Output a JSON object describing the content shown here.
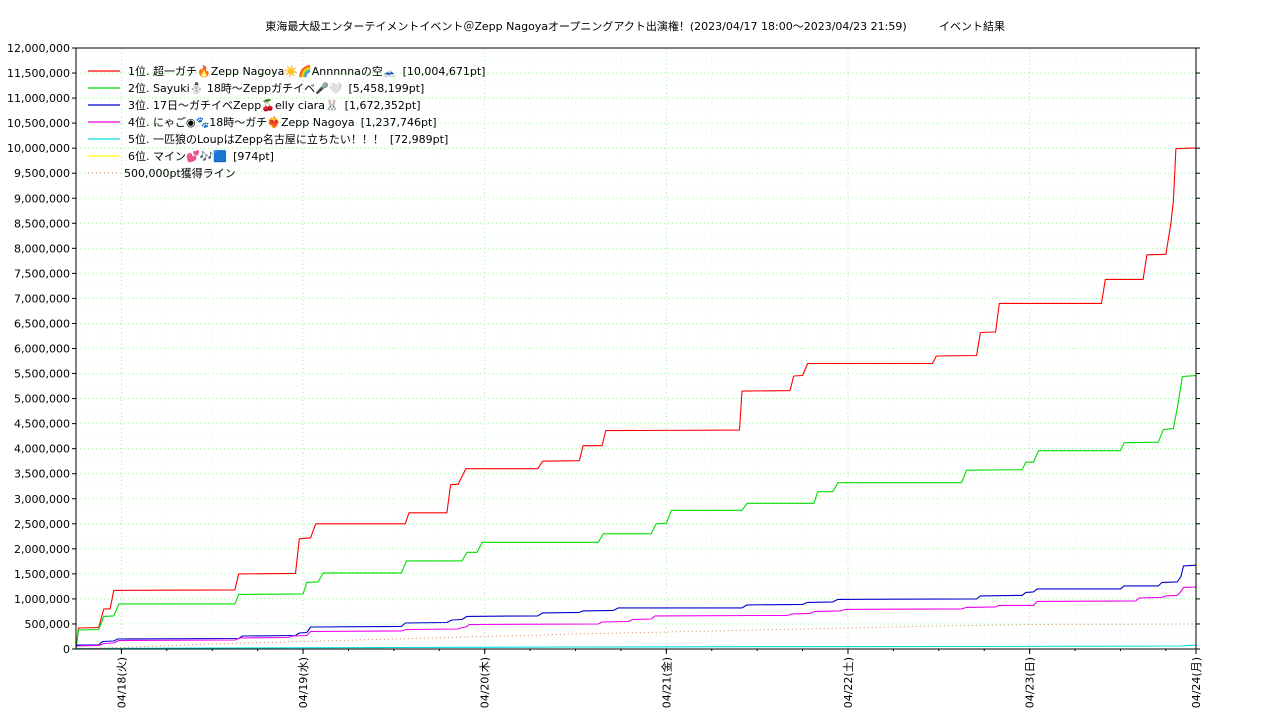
{
  "chart_data": {
    "type": "line",
    "title": "東海最大級エンターテイメントイベント＠Zepp Nagoyaオープニングアクト出演権！(2023/04/17 18:00～2023/04/23 21:59)",
    "title_suffix": "イベント結果",
    "xlabel": "",
    "ylabel": "",
    "xlim": [
      "2023-04-17 18:00",
      "2023-04-23 21:59"
    ],
    "ylim": [
      0,
      12000000
    ],
    "y_tick_step": 500000,
    "grid": true,
    "legend_position": "top-left",
    "x_ticks": [
      {
        "date": "2023-04-18 00:00",
        "label": "04/18(火)"
      },
      {
        "date": "2023-04-19 00:00",
        "label": "04/19(水)"
      },
      {
        "date": "2023-04-20 00:00",
        "label": "04/20(木)"
      },
      {
        "date": "2023-04-21 00:00",
        "label": "04/21(金)"
      },
      {
        "date": "2023-04-22 00:00",
        "label": "04/22(土)"
      },
      {
        "date": "2023-04-23 00:00",
        "label": "04/23(日)"
      },
      {
        "date": "2023-04-24 00:00",
        "label": "04/24(月)"
      }
    ],
    "series": [
      {
        "name": "1位. 超一ガチ🔥Zepp Nagoya☀️🌈Annnnnaの空🗻",
        "total": "[10,004,671pt]",
        "color": "#ff0000",
        "points": [
          [
            "2023-04-17 18:00",
            0
          ],
          [
            "2023-04-17 18:20",
            420000
          ],
          [
            "2023-04-17 21:00",
            430000
          ],
          [
            "2023-04-17 21:40",
            800000
          ],
          [
            "2023-04-17 22:30",
            800000
          ],
          [
            "2023-04-17 23:00",
            1170000
          ],
          [
            "2023-04-18 15:00",
            1180000
          ],
          [
            "2023-04-18 15:30",
            1500000
          ],
          [
            "2023-04-18 23:00",
            1510000
          ],
          [
            "2023-04-18 23:30",
            2200000
          ],
          [
            "2023-04-19 01:00",
            2220000
          ],
          [
            "2023-04-19 01:40",
            2500000
          ],
          [
            "2023-04-19 13:30",
            2500000
          ],
          [
            "2023-04-19 14:00",
            2720000
          ],
          [
            "2023-04-19 19:00",
            2720000
          ],
          [
            "2023-04-19 19:30",
            3280000
          ],
          [
            "2023-04-19 20:30",
            3290000
          ],
          [
            "2023-04-19 21:30",
            3600000
          ],
          [
            "2023-04-20 07:00",
            3600000
          ],
          [
            "2023-04-20 07:40",
            3750000
          ],
          [
            "2023-04-20 12:30",
            3760000
          ],
          [
            "2023-04-20 13:00",
            4060000
          ],
          [
            "2023-04-20 15:30",
            4060000
          ],
          [
            "2023-04-20 16:00",
            4360000
          ],
          [
            "2023-04-21 09:40",
            4370000
          ],
          [
            "2023-04-21 10:00",
            5150000
          ],
          [
            "2023-04-21 16:20",
            5160000
          ],
          [
            "2023-04-21 16:50",
            5450000
          ],
          [
            "2023-04-21 18:00",
            5460000
          ],
          [
            "2023-04-21 18:40",
            5700000
          ],
          [
            "2023-04-22 11:10",
            5700000
          ],
          [
            "2023-04-22 11:40",
            5850000
          ],
          [
            "2023-04-22 17:00",
            5860000
          ],
          [
            "2023-04-22 17:30",
            6320000
          ],
          [
            "2023-04-22 19:30",
            6330000
          ],
          [
            "2023-04-22 20:00",
            6900000
          ],
          [
            "2023-04-23 09:30",
            6900000
          ],
          [
            "2023-04-23 10:00",
            7380000
          ],
          [
            "2023-04-23 15:00",
            7380000
          ],
          [
            "2023-04-23 15:30",
            7870000
          ],
          [
            "2023-04-23 18:00",
            7880000
          ],
          [
            "2023-04-23 18:40",
            8500000
          ],
          [
            "2023-04-23 19:00",
            8950000
          ],
          [
            "2023-04-23 19:20",
            9990000
          ],
          [
            "2023-04-23 21:59",
            10004671
          ]
        ]
      },
      {
        "name": "2位. Sayuki⛄ 18時〜Zeppガチイベ🎤🤍",
        "total": "[5,458,199pt]",
        "color": "#00dd00",
        "points": [
          [
            "2023-04-17 18:00",
            0
          ],
          [
            "2023-04-17 18:20",
            380000
          ],
          [
            "2023-04-17 21:00",
            390000
          ],
          [
            "2023-04-17 21:40",
            650000
          ],
          [
            "2023-04-17 23:00",
            660000
          ],
          [
            "2023-04-17 23:40",
            900000
          ],
          [
            "2023-04-18 15:00",
            900000
          ],
          [
            "2023-04-18 15:30",
            1090000
          ],
          [
            "2023-04-19 00:00",
            1100000
          ],
          [
            "2023-04-19 00:30",
            1330000
          ],
          [
            "2023-04-19 02:00",
            1340000
          ],
          [
            "2023-04-19 02:40",
            1520000
          ],
          [
            "2023-04-19 13:00",
            1520000
          ],
          [
            "2023-04-19 13:40",
            1760000
          ],
          [
            "2023-04-19 21:00",
            1760000
          ],
          [
            "2023-04-19 21:40",
            1930000
          ],
          [
            "2023-04-19 23:00",
            1930000
          ],
          [
            "2023-04-19 23:40",
            2130000
          ],
          [
            "2023-04-20 15:00",
            2130000
          ],
          [
            "2023-04-20 15:40",
            2300000
          ],
          [
            "2023-04-20 22:00",
            2300000
          ],
          [
            "2023-04-20 22:40",
            2500000
          ],
          [
            "2023-04-21 00:00",
            2510000
          ],
          [
            "2023-04-21 00:40",
            2770000
          ],
          [
            "2023-04-21 10:00",
            2770000
          ],
          [
            "2023-04-21 10:40",
            2910000
          ],
          [
            "2023-04-21 19:30",
            2910000
          ],
          [
            "2023-04-21 20:00",
            3140000
          ],
          [
            "2023-04-21 22:00",
            3140000
          ],
          [
            "2023-04-21 22:40",
            3320000
          ],
          [
            "2023-04-22 15:00",
            3320000
          ],
          [
            "2023-04-22 15:40",
            3570000
          ],
          [
            "2023-04-22 23:00",
            3580000
          ],
          [
            "2023-04-22 23:30",
            3730000
          ],
          [
            "2023-04-23 00:30",
            3730000
          ],
          [
            "2023-04-23 01:10",
            3960000
          ],
          [
            "2023-04-23 12:00",
            3960000
          ],
          [
            "2023-04-23 12:30",
            4120000
          ],
          [
            "2023-04-23 17:00",
            4130000
          ],
          [
            "2023-04-23 17:40",
            4380000
          ],
          [
            "2023-04-23 19:00",
            4400000
          ],
          [
            "2023-04-23 19:40",
            4950000
          ],
          [
            "2023-04-23 20:10",
            5440000
          ],
          [
            "2023-04-23 21:59",
            5458199
          ]
        ]
      },
      {
        "name": "3位. 17日〜ガチイベZepp🍒elly ciara🐰",
        "total": "[1,672,352pt]",
        "color": "#0000cc",
        "points": [
          [
            "2023-04-17 18:00",
            80000
          ],
          [
            "2023-04-17 21:00",
            80000
          ],
          [
            "2023-04-17 21:30",
            150000
          ],
          [
            "2023-04-17 23:00",
            160000
          ],
          [
            "2023-04-17 23:30",
            200000
          ],
          [
            "2023-04-18 15:30",
            210000
          ],
          [
            "2023-04-18 16:00",
            260000
          ],
          [
            "2023-04-18 23:00",
            270000
          ],
          [
            "2023-04-18 23:30",
            320000
          ],
          [
            "2023-04-19 00:30",
            330000
          ],
          [
            "2023-04-19 01:00",
            440000
          ],
          [
            "2023-04-19 13:00",
            450000
          ],
          [
            "2023-04-19 13:30",
            520000
          ],
          [
            "2023-04-19 19:00",
            530000
          ],
          [
            "2023-04-19 19:40",
            580000
          ],
          [
            "2023-04-19 21:00",
            590000
          ],
          [
            "2023-04-19 21:40",
            650000
          ],
          [
            "2023-04-20 07:00",
            660000
          ],
          [
            "2023-04-20 07:40",
            720000
          ],
          [
            "2023-04-20 12:30",
            730000
          ],
          [
            "2023-04-20 13:00",
            760000
          ],
          [
            "2023-04-20 17:00",
            770000
          ],
          [
            "2023-04-20 17:40",
            820000
          ],
          [
            "2023-04-21 10:00",
            820000
          ],
          [
            "2023-04-21 10:40",
            880000
          ],
          [
            "2023-04-21 18:00",
            890000
          ],
          [
            "2023-04-21 18:40",
            930000
          ],
          [
            "2023-04-21 22:00",
            940000
          ],
          [
            "2023-04-21 22:40",
            990000
          ],
          [
            "2023-04-22 17:00",
            1000000
          ],
          [
            "2023-04-22 17:30",
            1060000
          ],
          [
            "2023-04-22 23:00",
            1070000
          ],
          [
            "2023-04-22 23:30",
            1130000
          ],
          [
            "2023-04-23 00:30",
            1140000
          ],
          [
            "2023-04-23 01:00",
            1200000
          ],
          [
            "2023-04-23 12:00",
            1200000
          ],
          [
            "2023-04-23 12:30",
            1260000
          ],
          [
            "2023-04-23 17:00",
            1260000
          ],
          [
            "2023-04-23 17:30",
            1330000
          ],
          [
            "2023-04-23 19:30",
            1340000
          ],
          [
            "2023-04-23 20:00",
            1450000
          ],
          [
            "2023-04-23 20:20",
            1660000
          ],
          [
            "2023-04-23 21:59",
            1672352
          ]
        ]
      },
      {
        "name": "4位. にゃご◉🐾18時〜ガチ❤️‍🔥Zepp Nagoya",
        "total": "[1,237,746pt]",
        "color": "#ee00ee",
        "points": [
          [
            "2023-04-17 18:00",
            60000
          ],
          [
            "2023-04-17 21:00",
            70000
          ],
          [
            "2023-04-17 21:40",
            110000
          ],
          [
            "2023-04-17 23:00",
            120000
          ],
          [
            "2023-04-17 23:40",
            170000
          ],
          [
            "2023-04-18 15:00",
            180000
          ],
          [
            "2023-04-18 15:40",
            220000
          ],
          [
            "2023-04-18 22:00",
            230000
          ],
          [
            "2023-04-18 22:40",
            260000
          ],
          [
            "2023-04-19 00:30",
            270000
          ],
          [
            "2023-04-19 01:00",
            350000
          ],
          [
            "2023-04-19 13:00",
            360000
          ],
          [
            "2023-04-19 13:40",
            390000
          ],
          [
            "2023-04-19 20:30",
            400000
          ],
          [
            "2023-04-19 21:00",
            430000
          ],
          [
            "2023-04-19 21:30",
            440000
          ],
          [
            "2023-04-19 22:00",
            490000
          ],
          [
            "2023-04-20 15:00",
            500000
          ],
          [
            "2023-04-20 15:30",
            540000
          ],
          [
            "2023-04-20 19:00",
            550000
          ],
          [
            "2023-04-20 19:30",
            590000
          ],
          [
            "2023-04-20 22:00",
            600000
          ],
          [
            "2023-04-20 22:30",
            660000
          ],
          [
            "2023-04-21 16:00",
            670000
          ],
          [
            "2023-04-21 16:40",
            700000
          ],
          [
            "2023-04-21 19:00",
            710000
          ],
          [
            "2023-04-21 19:40",
            750000
          ],
          [
            "2023-04-21 23:00",
            760000
          ],
          [
            "2023-04-21 23:40",
            790000
          ],
          [
            "2023-04-22 15:00",
            800000
          ],
          [
            "2023-04-22 15:40",
            830000
          ],
          [
            "2023-04-22 19:30",
            840000
          ],
          [
            "2023-04-22 20:00",
            870000
          ],
          [
            "2023-04-23 00:30",
            870000
          ],
          [
            "2023-04-23 01:00",
            950000
          ],
          [
            "2023-04-23 14:00",
            960000
          ],
          [
            "2023-04-23 14:30",
            1020000
          ],
          [
            "2023-04-23 17:30",
            1030000
          ],
          [
            "2023-04-23 18:00",
            1060000
          ],
          [
            "2023-04-23 19:30",
            1070000
          ],
          [
            "2023-04-23 20:00",
            1150000
          ],
          [
            "2023-04-23 20:20",
            1230000
          ],
          [
            "2023-04-23 21:59",
            1237746
          ]
        ]
      },
      {
        "name": "5位. 一匹狼のLoupはZepp名古屋に立ちたい！！！",
        "total": "[72,989pt]",
        "color": "#00dddd",
        "points": [
          [
            "2023-04-17 18:00",
            10000
          ],
          [
            "2023-04-18 12:00",
            20000
          ],
          [
            "2023-04-19 12:00",
            30000
          ],
          [
            "2023-04-20 12:00",
            40000
          ],
          [
            "2023-04-21 12:00",
            45000
          ],
          [
            "2023-04-22 12:00",
            50000
          ],
          [
            "2023-04-23 12:00",
            55000
          ],
          [
            "2023-04-23 20:00",
            60000
          ],
          [
            "2023-04-23 21:00",
            72000
          ],
          [
            "2023-04-23 21:59",
            72989
          ]
        ]
      },
      {
        "name": "6位. マイン💕🎶🟦",
        "total": "[974pt]",
        "color": "#ffff00",
        "points": [
          [
            "2023-04-17 18:00",
            0
          ],
          [
            "2023-04-23 21:59",
            974
          ]
        ]
      },
      {
        "name": "500,000pt獲得ライン",
        "total": "",
        "color": "#cc8866",
        "dashed": true,
        "points": [
          [
            "2023-04-17 18:00",
            0
          ],
          [
            "2023-04-18 12:00",
            100000
          ],
          [
            "2023-04-19 12:00",
            200000
          ],
          [
            "2023-04-20 12:00",
            300000
          ],
          [
            "2023-04-21 12:00",
            380000
          ],
          [
            "2023-04-22 12:00",
            460000
          ],
          [
            "2023-04-23 00:00",
            490000
          ],
          [
            "2023-04-23 21:59",
            500000
          ]
        ]
      }
    ]
  }
}
